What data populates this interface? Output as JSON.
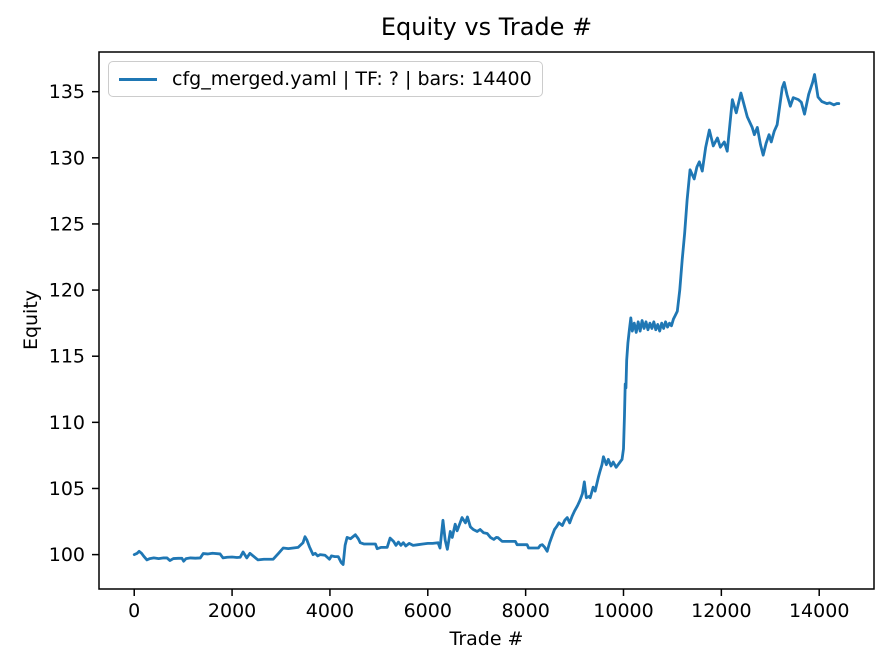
{
  "chart_data": {
    "type": "line",
    "title": "Equity vs Trade #",
    "xlabel": "Trade #",
    "ylabel": "Equity",
    "grid": false,
    "legend_position": "upper left",
    "line_color": "#1f77b4",
    "axis_color": "#000000",
    "legend_border_color": "#cccccc",
    "xlim": [
      -720,
      15120
    ],
    "ylim": [
      97.4,
      138.0
    ],
    "xticks": [
      0,
      2000,
      4000,
      6000,
      8000,
      10000,
      12000,
      14000
    ],
    "yticks": [
      100,
      105,
      110,
      115,
      120,
      125,
      130,
      135
    ],
    "series": [
      {
        "name": "cfg_merged.yaml | TF: ? | bars: 14400",
        "color": "#1f77b4",
        "points": [
          [
            0,
            100.0
          ],
          [
            60,
            100.1
          ],
          [
            100,
            100.25
          ],
          [
            150,
            100.1
          ],
          [
            200,
            99.85
          ],
          [
            260,
            99.6
          ],
          [
            320,
            99.7
          ],
          [
            400,
            99.75
          ],
          [
            500,
            99.7
          ],
          [
            600,
            99.75
          ],
          [
            670,
            99.75
          ],
          [
            730,
            99.55
          ],
          [
            800,
            99.7
          ],
          [
            900,
            99.72
          ],
          [
            975,
            99.72
          ],
          [
            1010,
            99.5
          ],
          [
            1060,
            99.7
          ],
          [
            1150,
            99.75
          ],
          [
            1250,
            99.73
          ],
          [
            1350,
            99.75
          ],
          [
            1410,
            100.08
          ],
          [
            1500,
            100.05
          ],
          [
            1600,
            100.1
          ],
          [
            1755,
            100.05
          ],
          [
            1815,
            99.75
          ],
          [
            1900,
            99.8
          ],
          [
            2000,
            99.82
          ],
          [
            2100,
            99.78
          ],
          [
            2165,
            99.8
          ],
          [
            2225,
            100.2
          ],
          [
            2300,
            99.75
          ],
          [
            2365,
            100.1
          ],
          [
            2430,
            99.9
          ],
          [
            2530,
            99.6
          ],
          [
            2650,
            99.65
          ],
          [
            2840,
            99.65
          ],
          [
            2950,
            100.1
          ],
          [
            3045,
            100.5
          ],
          [
            3150,
            100.45
          ],
          [
            3250,
            100.5
          ],
          [
            3350,
            100.55
          ],
          [
            3450,
            100.9
          ],
          [
            3490,
            101.35
          ],
          [
            3530,
            101.1
          ],
          [
            3580,
            100.6
          ],
          [
            3655,
            100.0
          ],
          [
            3700,
            100.1
          ],
          [
            3750,
            99.9
          ],
          [
            3800,
            100.0
          ],
          [
            3900,
            99.95
          ],
          [
            3990,
            99.65
          ],
          [
            4030,
            99.9
          ],
          [
            4100,
            99.85
          ],
          [
            4170,
            99.85
          ],
          [
            4230,
            99.4
          ],
          [
            4270,
            99.25
          ],
          [
            4310,
            100.7
          ],
          [
            4350,
            101.3
          ],
          [
            4420,
            101.2
          ],
          [
            4520,
            101.5
          ],
          [
            4580,
            101.2
          ],
          [
            4620,
            100.9
          ],
          [
            4700,
            100.8
          ],
          [
            4800,
            100.8
          ],
          [
            4930,
            100.8
          ],
          [
            4965,
            100.45
          ],
          [
            5050,
            100.55
          ],
          [
            5170,
            100.55
          ],
          [
            5230,
            101.25
          ],
          [
            5300,
            101.0
          ],
          [
            5350,
            100.7
          ],
          [
            5400,
            100.95
          ],
          [
            5450,
            100.7
          ],
          [
            5500,
            100.9
          ],
          [
            5550,
            100.65
          ],
          [
            5620,
            100.85
          ],
          [
            5700,
            100.7
          ],
          [
            5800,
            100.75
          ],
          [
            5900,
            100.8
          ],
          [
            6000,
            100.85
          ],
          [
            6100,
            100.85
          ],
          [
            6210,
            100.9
          ],
          [
            6250,
            100.5
          ],
          [
            6310,
            102.6
          ],
          [
            6355,
            101.1
          ],
          [
            6400,
            100.4
          ],
          [
            6460,
            101.75
          ],
          [
            6500,
            101.3
          ],
          [
            6560,
            102.3
          ],
          [
            6600,
            101.8
          ],
          [
            6650,
            102.3
          ],
          [
            6700,
            102.8
          ],
          [
            6770,
            102.4
          ],
          [
            6810,
            102.85
          ],
          [
            6870,
            102.1
          ],
          [
            6930,
            101.9
          ],
          [
            7010,
            101.75
          ],
          [
            7070,
            101.9
          ],
          [
            7140,
            101.65
          ],
          [
            7215,
            101.6
          ],
          [
            7280,
            101.3
          ],
          [
            7350,
            101.15
          ],
          [
            7400,
            101.3
          ],
          [
            7435,
            101.28
          ],
          [
            7520,
            101.0
          ],
          [
            7650,
            101.0
          ],
          [
            7790,
            101.0
          ],
          [
            7825,
            100.75
          ],
          [
            7950,
            100.75
          ],
          [
            8030,
            100.75
          ],
          [
            8060,
            100.5
          ],
          [
            8180,
            100.5
          ],
          [
            8260,
            100.5
          ],
          [
            8300,
            100.7
          ],
          [
            8340,
            100.75
          ],
          [
            8390,
            100.55
          ],
          [
            8440,
            100.25
          ],
          [
            8490,
            100.9
          ],
          [
            8530,
            101.3
          ],
          [
            8590,
            101.9
          ],
          [
            8630,
            102.1
          ],
          [
            8680,
            102.4
          ],
          [
            8750,
            102.2
          ],
          [
            8800,
            102.6
          ],
          [
            8850,
            102.8
          ],
          [
            8900,
            102.4
          ],
          [
            8950,
            102.9
          ],
          [
            9000,
            103.3
          ],
          [
            9060,
            103.7
          ],
          [
            9110,
            104.1
          ],
          [
            9160,
            104.6
          ],
          [
            9200,
            105.5
          ],
          [
            9240,
            104.3
          ],
          [
            9300,
            104.4
          ],
          [
            9320,
            104.3
          ],
          [
            9380,
            105.1
          ],
          [
            9420,
            104.8
          ],
          [
            9490,
            105.9
          ],
          [
            9520,
            106.3
          ],
          [
            9560,
            106.8
          ],
          [
            9590,
            107.4
          ],
          [
            9650,
            106.8
          ],
          [
            9690,
            107.2
          ],
          [
            9745,
            106.7
          ],
          [
            9790,
            107.0
          ],
          [
            9850,
            106.6
          ],
          [
            9890,
            106.8
          ],
          [
            9930,
            107.0
          ],
          [
            9970,
            107.2
          ],
          [
            10000,
            108.0
          ],
          [
            10020,
            110.5
          ],
          [
            10035,
            112.9
          ],
          [
            10050,
            112.6
          ],
          [
            10065,
            114.7
          ],
          [
            10090,
            116.0
          ],
          [
            10120,
            117.0
          ],
          [
            10150,
            117.9
          ],
          [
            10180,
            116.9
          ],
          [
            10220,
            117.5
          ],
          [
            10260,
            116.8
          ],
          [
            10300,
            117.6
          ],
          [
            10340,
            116.9
          ],
          [
            10380,
            117.7
          ],
          [
            10420,
            117.1
          ],
          [
            10460,
            117.6
          ],
          [
            10500,
            117.0
          ],
          [
            10540,
            117.5
          ],
          [
            10580,
            117.1
          ],
          [
            10620,
            117.6
          ],
          [
            10660,
            117.0
          ],
          [
            10700,
            117.4
          ],
          [
            10740,
            116.9
          ],
          [
            10780,
            117.5
          ],
          [
            10820,
            117.1
          ],
          [
            10860,
            117.6
          ],
          [
            10900,
            117.2
          ],
          [
            10940,
            117.5
          ],
          [
            10980,
            117.3
          ],
          [
            11020,
            117.8
          ],
          [
            11060,
            118.1
          ],
          [
            11100,
            118.4
          ],
          [
            11150,
            120.0
          ],
          [
            11200,
            122.3
          ],
          [
            11250,
            124.3
          ],
          [
            11300,
            126.8
          ],
          [
            11360,
            129.1
          ],
          [
            11445,
            128.4
          ],
          [
            11500,
            129.3
          ],
          [
            11550,
            129.7
          ],
          [
            11610,
            129.0
          ],
          [
            11680,
            130.8
          ],
          [
            11755,
            132.1
          ],
          [
            11835,
            130.9
          ],
          [
            11920,
            131.5
          ],
          [
            11980,
            130.8
          ],
          [
            12060,
            131.2
          ],
          [
            12120,
            130.5
          ],
          [
            12225,
            134.4
          ],
          [
            12305,
            133.4
          ],
          [
            12400,
            134.9
          ],
          [
            12530,
            133.1
          ],
          [
            12630,
            132.3
          ],
          [
            12675,
            131.75
          ],
          [
            12735,
            132.3
          ],
          [
            12800,
            131.0
          ],
          [
            12855,
            130.2
          ],
          [
            12915,
            131.1
          ],
          [
            12975,
            131.75
          ],
          [
            13020,
            131.2
          ],
          [
            13080,
            132.0
          ],
          [
            13140,
            132.5
          ],
          [
            13245,
            135.3
          ],
          [
            13285,
            135.7
          ],
          [
            13340,
            134.8
          ],
          [
            13410,
            133.9
          ],
          [
            13470,
            134.55
          ],
          [
            13575,
            134.4
          ],
          [
            13635,
            134.2
          ],
          [
            13700,
            133.3
          ],
          [
            13785,
            134.8
          ],
          [
            13865,
            135.7
          ],
          [
            13905,
            136.3
          ],
          [
            13975,
            134.6
          ],
          [
            14055,
            134.25
          ],
          [
            14155,
            134.1
          ],
          [
            14215,
            134.15
          ],
          [
            14300,
            134.0
          ],
          [
            14360,
            134.1
          ],
          [
            14400,
            134.1
          ]
        ]
      }
    ]
  }
}
